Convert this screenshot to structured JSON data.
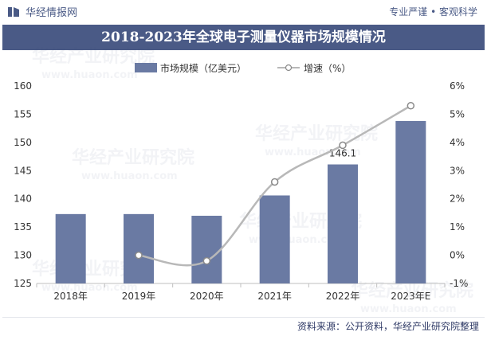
{
  "header": {
    "brand_name": "华经情报网",
    "tagline": "专业严谨 • 客观科学"
  },
  "watermark": {
    "text": "华经产业研究院",
    "url": "www.huaon.com"
  },
  "footer": {
    "source": "资料来源：公开资料，华经产业研究院整理"
  },
  "colors": {
    "brand": "#4a5a86",
    "bar": "#6a7aa3",
    "line": "#b8b8b8",
    "marker_fill": "#ffffff",
    "marker_stroke": "#8a8a8a",
    "grid": "#e3e3e3"
  },
  "chart_data": {
    "type": "bar",
    "title": "2018-2023年全球电子测量仪器市场规模情况",
    "categories": [
      "2018年",
      "2019年",
      "2020年",
      "2021年",
      "2022年",
      "2023年E"
    ],
    "series": [
      {
        "name": "市场规模（亿美元）",
        "type": "bar",
        "axis": "left",
        "values": [
          137.3,
          137.3,
          137.0,
          140.6,
          146.1,
          153.8
        ]
      },
      {
        "name": "增速（%）",
        "type": "line",
        "axis": "right",
        "values": [
          null,
          0.0,
          -0.2,
          2.6,
          3.9,
          5.3
        ]
      }
    ],
    "data_labels": [
      {
        "series": 0,
        "index": 4,
        "text": "146.1"
      }
    ],
    "y_left": {
      "min": 125,
      "max": 160,
      "ticks": [
        "125",
        "130",
        "135",
        "140",
        "145",
        "150",
        "155",
        "160"
      ]
    },
    "y_right": {
      "min": -1,
      "max": 6,
      "ticks": [
        "-1%",
        "0%",
        "1%",
        "2%",
        "3%",
        "4%",
        "5%",
        "6%"
      ]
    },
    "legend_position": "top",
    "grid": false
  }
}
